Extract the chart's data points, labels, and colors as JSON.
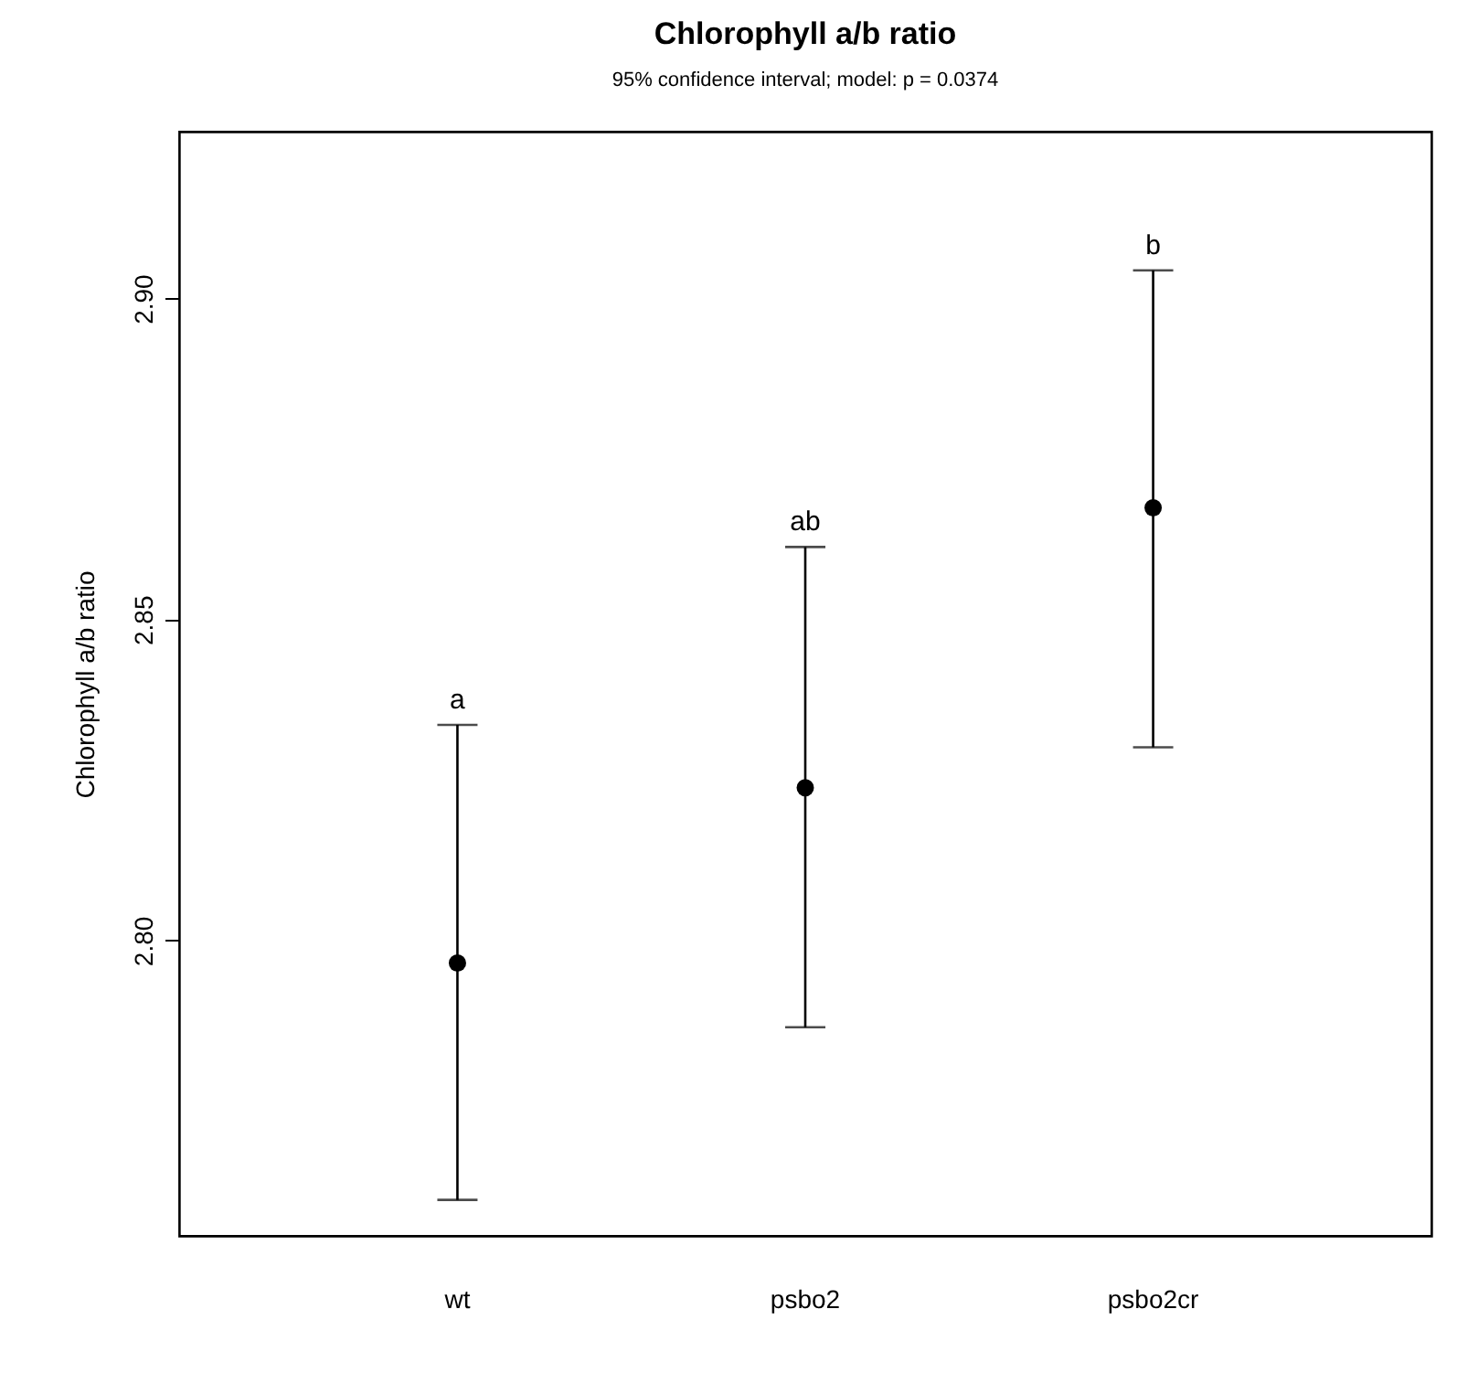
{
  "chart_data": {
    "type": "scatter",
    "title": "Chlorophyll a/b ratio",
    "subtitle": "95% confidence interval; model: p =  0.0374",
    "ylabel": "Chlorophyll a/b ratio",
    "categories": [
      "wt",
      "psbo2",
      "psbo2cr"
    ],
    "values": [
      2.7965,
      2.8238,
      2.8674
    ],
    "errors": [
      [
        2.7596,
        2.8336
      ],
      [
        2.7865,
        2.8613
      ],
      [
        2.8301,
        2.9044
      ]
    ],
    "color": "#000000",
    "marker": "circle",
    "ylim": [
      2.754,
      2.926
    ],
    "yticks": [
      {
        "value": 2.8,
        "label": "2.80"
      },
      2.85,
      {
        "value": 2.9,
        "label": "2.90"
      }
    ],
    "annotations": [
      "a",
      "ab",
      "b"
    ],
    "grid": false
  }
}
